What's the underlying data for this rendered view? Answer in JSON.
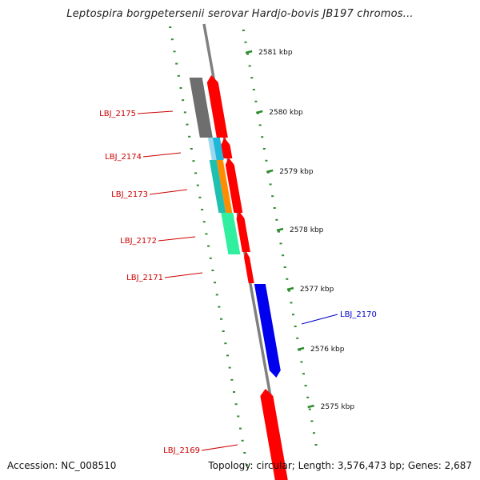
{
  "title": "Leptospira borgpetersenii serovar Hardjo-bovis JB197 chromos...",
  "footer": {
    "accession": "Accession: NC_008510",
    "summary": "Topology: circular; Length: 3,576,473 bp; Genes: 2,687"
  },
  "colors": {
    "backbone": "#808080",
    "tick": "#2e8b2e",
    "tick_label": "#111111",
    "gene_red": "#ff0000",
    "gene_blue": "#0000ee",
    "label_red": "#cc0000",
    "label_blue": "#0000cc",
    "feature_gray": "#6e6e6e",
    "feature_cyan": "#1fb8d8",
    "feature_lightblue": "#9ad8f0",
    "feature_orange": "#ff8c00",
    "feature_teal": "#20c0b0",
    "feature_mint": "#30f0a0"
  },
  "ticks": [
    {
      "label": "2581 kbp"
    },
    {
      "label": "2580 kbp"
    },
    {
      "label": "2579 kbp"
    },
    {
      "label": "2578 kbp"
    },
    {
      "label": "2577 kbp"
    },
    {
      "label": "2576 kbp"
    },
    {
      "label": "2575 kbp"
    }
  ],
  "genes": [
    {
      "name": "LBJ_2175",
      "color": "gene_red",
      "label_color": "label_red"
    },
    {
      "name": "LBJ_2174",
      "color": "gene_red",
      "label_color": "label_red"
    },
    {
      "name": "LBJ_2173",
      "color": "gene_red",
      "label_color": "label_red"
    },
    {
      "name": "LBJ_2172",
      "color": "gene_red",
      "label_color": "label_red"
    },
    {
      "name": "LBJ_2171",
      "color": "gene_red",
      "label_color": "label_red"
    },
    {
      "name": "LBJ_2170",
      "color": "gene_blue",
      "label_color": "label_blue"
    },
    {
      "name": "LBJ_2169",
      "color": "gene_red",
      "label_color": "label_red"
    }
  ]
}
